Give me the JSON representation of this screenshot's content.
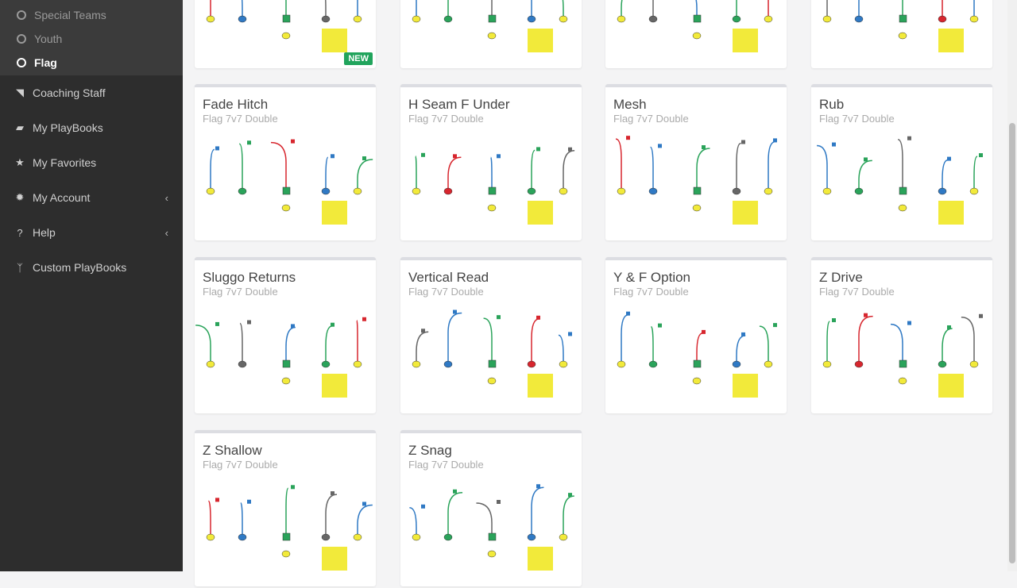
{
  "sidebar": {
    "subitems": [
      {
        "label": "Special Teams",
        "active": false
      },
      {
        "label": "Youth",
        "active": false
      },
      {
        "label": "Flag",
        "active": true
      }
    ],
    "items": [
      {
        "label": "Coaching Staff",
        "icon": "rss-icon",
        "glyph": "◥",
        "chevron": false
      },
      {
        "label": "My PlayBooks",
        "icon": "book-icon",
        "glyph": "▰",
        "chevron": false
      },
      {
        "label": "My Favorites",
        "icon": "star-icon",
        "glyph": "★",
        "chevron": false
      },
      {
        "label": "My Account",
        "icon": "gear-icon",
        "glyph": "✹",
        "chevron": true
      },
      {
        "label": "Help",
        "icon": "question-circle-icon",
        "glyph": "?",
        "chevron": true
      },
      {
        "label": "Custom PlayBooks",
        "icon": "code-fork-icon",
        "glyph": "ᛉ",
        "chevron": false
      }
    ]
  },
  "plays": [
    {
      "title": "",
      "subtitle": "",
      "badge": "NEW"
    },
    {
      "title": "",
      "subtitle": ""
    },
    {
      "title": "",
      "subtitle": ""
    },
    {
      "title": "",
      "subtitle": ""
    },
    {
      "title": "Fade Hitch",
      "subtitle": "Flag 7v7 Double"
    },
    {
      "title": "H Seam F Under",
      "subtitle": "Flag 7v7 Double"
    },
    {
      "title": "Mesh",
      "subtitle": "Flag 7v7 Double"
    },
    {
      "title": "Rub",
      "subtitle": "Flag 7v7 Double"
    },
    {
      "title": "Sluggo Returns",
      "subtitle": "Flag 7v7 Double"
    },
    {
      "title": "Vertical Read",
      "subtitle": "Flag 7v7 Double"
    },
    {
      "title": "Y & F Option",
      "subtitle": "Flag 7v7 Double"
    },
    {
      "title": "Z Drive",
      "subtitle": "Flag 7v7 Double"
    },
    {
      "title": "Z Shallow",
      "subtitle": "Flag 7v7 Double"
    },
    {
      "title": "Z Snag",
      "subtitle": "Flag 7v7 Double"
    }
  ],
  "colors": {
    "red": "#d7262e",
    "blue": "#2f79c4",
    "green": "#2aa35a",
    "yellow": "#f2ea3a",
    "gray": "#666666",
    "new": "#21a45c"
  }
}
